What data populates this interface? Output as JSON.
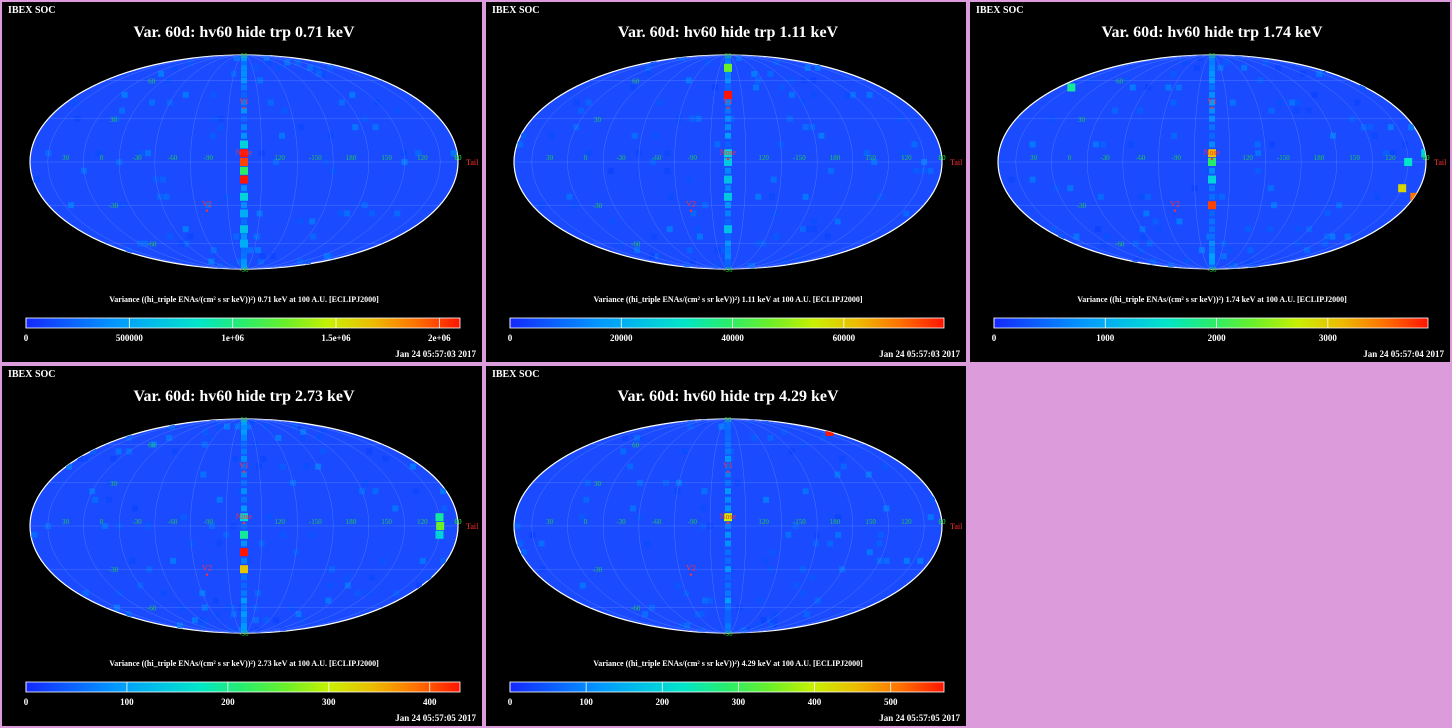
{
  "header_label": "IBEX SOC",
  "colorbar_title": "Variance ((hi_triple ENAs/(cm² s sr keV))²)",
  "colorbar_suffix": "at 100 A.U. [ECLIPJ2000]",
  "map_labels": {
    "lat_labels": [
      "90",
      "60",
      "30",
      "0",
      "-30",
      "-60",
      "-90"
    ],
    "lon_labels": [
      "60",
      "30",
      "0",
      "-30",
      "-60",
      "-90",
      "120",
      "-150",
      "180",
      "150",
      "120",
      "90"
    ],
    "nose": "Nose",
    "tail": "Tail",
    "v1": "V1",
    "v2": "V2"
  },
  "colors": {
    "page_background": "#dc9cdc",
    "panel_background": "#000000",
    "map_base": "#1a4bff",
    "grid": "#5a80ff",
    "label": "#ff3030",
    "grid_label": "#22cc44"
  },
  "chart_data": [
    {
      "type": "heatmap",
      "title": "Var. 60d: hv60 hide trp 0.71 keV",
      "energy": "0.71 keV",
      "projection": "Mollweide",
      "colorbar": {
        "min": 0,
        "max": 2100000,
        "ticks": [
          "0",
          "500000",
          "1e+06",
          "1.5e+06",
          "2e+06"
        ],
        "tick_values": [
          0,
          500000,
          1000000,
          1500000,
          2000000
        ]
      },
      "timestamp": "Jan 24 05:57:03 2017",
      "highlights": [
        {
          "ecliptic_lon": 255,
          "ecliptic_lat": 12,
          "level": 0.35
        },
        {
          "ecliptic_lon": 255,
          "ecliptic_lat": 6,
          "level": 1.0
        },
        {
          "ecliptic_lon": 255,
          "ecliptic_lat": 0,
          "level": 0.95
        },
        {
          "ecliptic_lon": 255,
          "ecliptic_lat": -6,
          "level": 0.5
        },
        {
          "ecliptic_lon": 255,
          "ecliptic_lat": -12,
          "level": 1.0
        },
        {
          "ecliptic_lon": 255,
          "ecliptic_lat": -24,
          "level": 0.35
        },
        {
          "ecliptic_lon": 255,
          "ecliptic_lat": -48,
          "level": 0.3
        },
        {
          "ecliptic_lon": 255,
          "ecliptic_lat": -60,
          "level": 0.25
        },
        {
          "ecliptic_lon": 255,
          "ecliptic_lat": -36,
          "level": 0.25
        }
      ]
    },
    {
      "type": "heatmap",
      "title": "Var. 60d: hv60 hide trp 1.11 keV",
      "energy": "1.11 keV",
      "projection": "Mollweide",
      "colorbar": {
        "min": 0,
        "max": 78000,
        "ticks": [
          "0",
          "20000",
          "40000",
          "60000"
        ],
        "tick_values": [
          0,
          20000,
          40000,
          60000
        ]
      },
      "timestamp": "Jan 24 05:57:03 2017",
      "highlights": [
        {
          "ecliptic_lon": 255,
          "ecliptic_lat": 72,
          "level": 0.6
        },
        {
          "ecliptic_lon": 255,
          "ecliptic_lat": 48,
          "level": 1.0
        },
        {
          "ecliptic_lon": 255,
          "ecliptic_lat": 6,
          "level": 0.35
        },
        {
          "ecliptic_lon": 255,
          "ecliptic_lat": 0,
          "level": 0.32
        },
        {
          "ecliptic_lon": 255,
          "ecliptic_lat": -12,
          "level": 0.3
        },
        {
          "ecliptic_lon": 255,
          "ecliptic_lat": -24,
          "level": 0.32
        },
        {
          "ecliptic_lon": 255,
          "ecliptic_lat": -48,
          "level": 0.3
        }
      ]
    },
    {
      "type": "heatmap",
      "title": "Var. 60d: hv60 hide trp 1.74 keV",
      "energy": "1.74 keV",
      "projection": "Mollweide",
      "colorbar": {
        "min": 0,
        "max": 3900,
        "ticks": [
          "0",
          "1000",
          "2000",
          "3000"
        ],
        "tick_values": [
          0,
          1000,
          2000,
          3000
        ]
      },
      "timestamp": "Jan 24 05:57:04 2017",
      "highlights": [
        {
          "ecliptic_lon": 255,
          "ecliptic_lat": 6,
          "level": 0.8
        },
        {
          "ecliptic_lon": 255,
          "ecliptic_lat": 0,
          "level": 0.5
        },
        {
          "ecliptic_lon": 255,
          "ecliptic_lat": -30,
          "level": 0.95
        },
        {
          "ecliptic_lon": 255,
          "ecliptic_lat": -12,
          "level": 0.35
        },
        {
          "ecliptic_lon": 90,
          "ecliptic_lat": 0,
          "level": 0.4
        },
        {
          "ecliptic_lon": 90,
          "ecliptic_lat": -18,
          "level": 0.75
        },
        {
          "ecliptic_lon": 75,
          "ecliptic_lat": -24,
          "level": 0.9
        },
        {
          "ecliptic_lon": 75,
          "ecliptic_lat": 6,
          "level": 0.35
        },
        {
          "ecliptic_lon": 60,
          "ecliptic_lat": 54,
          "level": 0.45
        }
      ]
    },
    {
      "type": "heatmap",
      "title": "Var. 60d: hv60 hide trp 2.73 keV",
      "energy": "2.73 keV",
      "projection": "Mollweide",
      "colorbar": {
        "min": 0,
        "max": 430,
        "ticks": [
          "0",
          "100",
          "200",
          "300",
          "400"
        ],
        "tick_values": [
          0,
          100,
          200,
          300,
          400
        ]
      },
      "timestamp": "Jan 24 05:57:05 2017",
      "highlights": [
        {
          "ecliptic_lon": 255,
          "ecliptic_lat": 6,
          "level": 0.35
        },
        {
          "ecliptic_lon": 255,
          "ecliptic_lat": -6,
          "level": 0.45
        },
        {
          "ecliptic_lon": 255,
          "ecliptic_lat": -18,
          "level": 1.0
        },
        {
          "ecliptic_lon": 255,
          "ecliptic_lat": -30,
          "level": 0.78
        },
        {
          "ecliptic_lon": 90,
          "ecliptic_lat": 6,
          "level": 0.45
        },
        {
          "ecliptic_lon": 90,
          "ecliptic_lat": -6,
          "level": 0.35
        },
        {
          "ecliptic_lon": 90,
          "ecliptic_lat": 0,
          "level": 0.6
        }
      ]
    },
    {
      "type": "heatmap",
      "title": "Var. 60d: hv60 hide trp 4.29 keV",
      "energy": "4.29 keV",
      "projection": "Mollweide",
      "colorbar": {
        "min": 0,
        "max": 570,
        "ticks": [
          "0",
          "100",
          "200",
          "300",
          "400",
          "500"
        ],
        "tick_values": [
          0,
          100,
          200,
          300,
          400,
          500
        ]
      },
      "timestamp": "Jan 24 05:57:05 2017",
      "highlights": [
        {
          "ecliptic_lon": 255,
          "ecliptic_lat": 6,
          "level": 0.7
        },
        {
          "ecliptic_lon": 75,
          "ecliptic_lat": 72,
          "level": 1.0
        }
      ]
    }
  ]
}
